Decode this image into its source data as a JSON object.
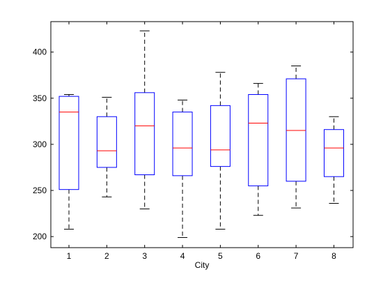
{
  "chart_data": {
    "type": "box",
    "title": "",
    "xlabel": "City",
    "ylabel": "",
    "ylim": [
      188,
      433
    ],
    "yticks": [
      200,
      250,
      300,
      350,
      400
    ],
    "grid": false,
    "legend": "none",
    "categories": [
      "1",
      "2",
      "3",
      "4",
      "5",
      "6",
      "7",
      "8"
    ],
    "boxes": [
      {
        "label": "1",
        "lower_whisker": 208,
        "q1": 251,
        "median": 335,
        "q3": 352,
        "upper_whisker": 354
      },
      {
        "label": "2",
        "lower_whisker": 243,
        "q1": 275,
        "median": 293,
        "q3": 330,
        "upper_whisker": 351
      },
      {
        "label": "3",
        "lower_whisker": 230,
        "q1": 267,
        "median": 320,
        "q3": 356,
        "upper_whisker": 423
      },
      {
        "label": "4",
        "lower_whisker": 199,
        "q1": 266,
        "median": 296,
        "q3": 335,
        "upper_whisker": 348
      },
      {
        "label": "5",
        "lower_whisker": 208,
        "q1": 276,
        "median": 294,
        "q3": 342,
        "upper_whisker": 378
      },
      {
        "label": "6",
        "lower_whisker": 223,
        "q1": 255,
        "median": 323,
        "q3": 354,
        "upper_whisker": 366
      },
      {
        "label": "7",
        "lower_whisker": 231,
        "q1": 260,
        "median": 315,
        "q3": 371,
        "upper_whisker": 385
      },
      {
        "label": "8",
        "lower_whisker": 236,
        "q1": 265,
        "median": 296,
        "q3": 316,
        "upper_whisker": 330
      }
    ],
    "colors": {
      "box": "#0000ff",
      "median": "#ff0000",
      "whisker": "#000000",
      "axes": "#000000",
      "background": "#ffffff"
    }
  }
}
